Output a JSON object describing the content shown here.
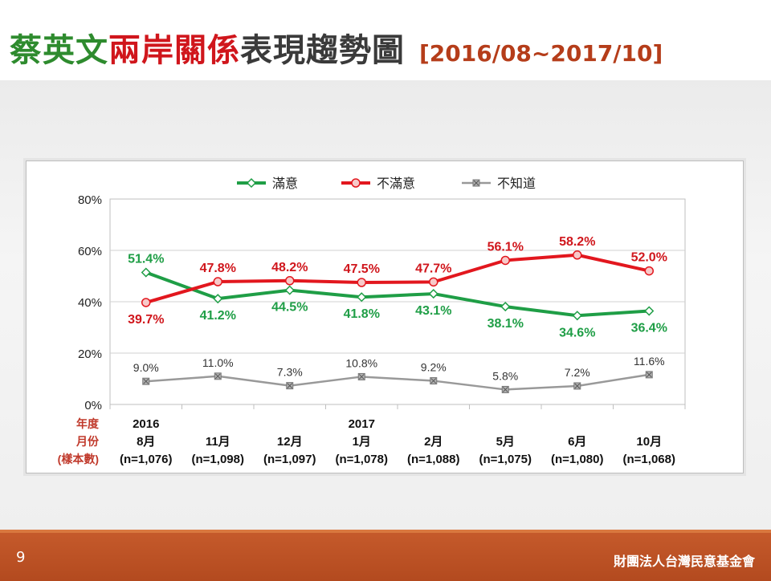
{
  "slide": {
    "title_part1": "蔡英文",
    "title_part2": "兩岸關係",
    "title_part3": "表現趨勢圖",
    "title_range": "[2016/08~2017/10]",
    "page_number": "9",
    "organization": "財團法人台灣民意基金會"
  },
  "colors": {
    "green": "#1f9e46",
    "red": "#e2171e",
    "gray": "#999999",
    "label_red": "#c0392b"
  },
  "chart_data": {
    "type": "line",
    "title": "",
    "ylabel": "",
    "ylim": [
      0,
      80
    ],
    "yticks": [
      "0%",
      "20%",
      "40%",
      "60%",
      "80%"
    ],
    "grid": true,
    "legend_position": "top",
    "row_labels": {
      "year": "年度",
      "month": "月份",
      "sample": "(樣本數)"
    },
    "x": [
      {
        "year": "2016",
        "month": "8月",
        "sample": "(n=1,076)"
      },
      {
        "year": "",
        "month": "11月",
        "sample": "(n=1,098)"
      },
      {
        "year": "",
        "month": "12月",
        "sample": "(n=1,097)"
      },
      {
        "year": "2017",
        "month": "1月",
        "sample": "(n=1,078)"
      },
      {
        "year": "",
        "month": "2月",
        "sample": "(n=1,088)"
      },
      {
        "year": "",
        "month": "5月",
        "sample": "(n=1,075)"
      },
      {
        "year": "",
        "month": "6月",
        "sample": "(n=1,080)"
      },
      {
        "year": "",
        "month": "10月",
        "sample": "(n=1,068)"
      }
    ],
    "series": [
      {
        "name": "滿意",
        "color": "#1f9e46",
        "marker": "diamond",
        "values": [
          51.4,
          41.2,
          44.5,
          41.8,
          43.1,
          38.1,
          34.6,
          36.4
        ],
        "labels": [
          "51.4%",
          "41.2%",
          "44.5%",
          "41.8%",
          "43.1%",
          "38.1%",
          "34.6%",
          "36.4%"
        ],
        "label_pos": [
          "above",
          "below",
          "below",
          "below",
          "below",
          "below",
          "below",
          "below"
        ]
      },
      {
        "name": "不滿意",
        "color": "#e2171e",
        "marker": "circle",
        "values": [
          39.7,
          47.8,
          48.2,
          47.5,
          47.7,
          56.1,
          58.2,
          52.0
        ],
        "labels": [
          "39.7%",
          "47.8%",
          "48.2%",
          "47.5%",
          "47.7%",
          "56.1%",
          "58.2%",
          "52.0%"
        ],
        "label_pos": [
          "below",
          "above",
          "above",
          "above",
          "above",
          "above",
          "above",
          "above"
        ]
      },
      {
        "name": "不知道",
        "color": "#999999",
        "marker": "square-x",
        "values": [
          9.0,
          11.0,
          7.3,
          10.8,
          9.2,
          5.8,
          7.2,
          11.6
        ],
        "labels": [
          "9.0%",
          "11.0%",
          "7.3%",
          "10.8%",
          "9.2%",
          "5.8%",
          "7.2%",
          "11.6%"
        ],
        "label_pos": [
          "above",
          "above",
          "above",
          "above",
          "above",
          "above",
          "above",
          "above"
        ]
      }
    ]
  }
}
